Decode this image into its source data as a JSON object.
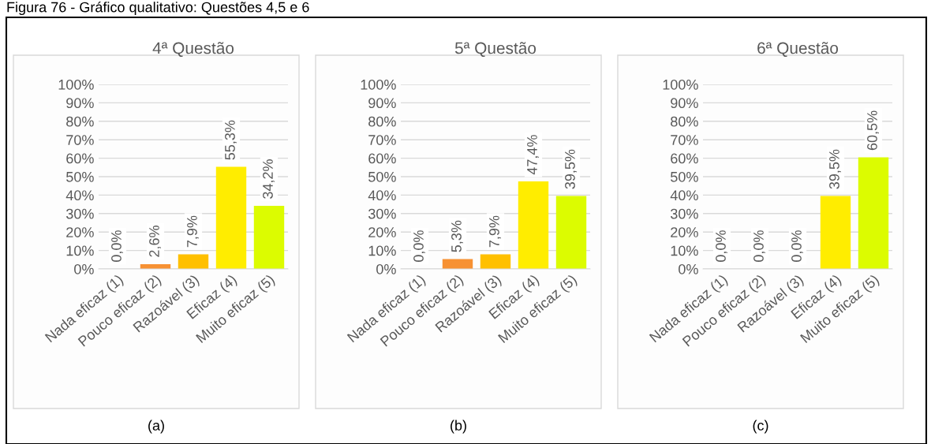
{
  "chart_data": [
    {
      "type": "bar",
      "title": "4ª Questão",
      "categories": [
        "Nada eficaz (1)",
        "Pouco eficaz (2)",
        "Razoável (3)",
        "Eficaz (4)",
        "Muito eficaz (5)"
      ],
      "values": [
        0.0,
        2.6,
        7.9,
        55.3,
        34.2
      ],
      "colors": [
        "#f79133",
        "#f79133",
        "#ffc000",
        "#ffed00",
        "#dcfc00"
      ],
      "value_labels": [
        "0,0%",
        "2,6%",
        "7,9%",
        "55,3%",
        "34,2%"
      ],
      "ylim": [
        0,
        100
      ],
      "yticks": [
        {
          "value": 0,
          "label": "0%"
        },
        {
          "value": 10,
          "label": "10%"
        },
        {
          "value": 20,
          "label": "20%"
        },
        {
          "value": 30,
          "label": "30%"
        },
        {
          "value": 40,
          "label": "40%"
        },
        {
          "value": 50,
          "label": "50%"
        },
        {
          "value": 60,
          "label": "60%"
        },
        {
          "value": 70,
          "label": "70%"
        },
        {
          "value": 80,
          "label": "80%"
        },
        {
          "value": 90,
          "label": "90%"
        },
        {
          "value": 100,
          "label": "100%"
        }
      ],
      "grid": "y",
      "legend": false,
      "annotations": [
        "Figura 76 - Gráfico qualitativo: Questões 4,5 e 6",
        "(a)"
      ]
    },
    {
      "type": "bar",
      "title": "5ª Questão",
      "categories": [
        "Nada eficaz (1)",
        "Pouco eficaz (2)",
        "Razoável (3)",
        "Eficaz (4)",
        "Muito eficaz (5)"
      ],
      "values": [
        0.0,
        5.3,
        7.9,
        47.4,
        39.5
      ],
      "colors": [
        "#f79133",
        "#f79133",
        "#ffc000",
        "#ffed00",
        "#dcfc00"
      ],
      "value_labels": [
        "0,0%",
        "5,3%",
        "7,9%",
        "47,4%",
        "39,5%"
      ],
      "ylim": [
        0,
        100
      ],
      "yticks": [
        {
          "value": 0,
          "label": "0%"
        },
        {
          "value": 10,
          "label": "10%"
        },
        {
          "value": 20,
          "label": "20%"
        },
        {
          "value": 30,
          "label": "30%"
        },
        {
          "value": 40,
          "label": "40%"
        },
        {
          "value": 50,
          "label": "50%"
        },
        {
          "value": 60,
          "label": "60%"
        },
        {
          "value": 70,
          "label": "70%"
        },
        {
          "value": 80,
          "label": "80%"
        },
        {
          "value": 90,
          "label": "90%"
        },
        {
          "value": 100,
          "label": "100%"
        }
      ],
      "grid": "y",
      "legend": false,
      "annotations": [
        "(b)"
      ]
    },
    {
      "type": "bar",
      "title": "6ª Questão",
      "categories": [
        "Nada eficaz (1)",
        "Pouco eficaz (2)",
        "Razoável (3)",
        "Eficaz (4)",
        "Muito eficaz (5)"
      ],
      "values": [
        0.0,
        0.0,
        0.0,
        39.5,
        60.5
      ],
      "colors": [
        "#f79133",
        "#f79133",
        "#ffc000",
        "#ffed00",
        "#dcfc00"
      ],
      "value_labels": [
        "0,0%",
        "0,0%",
        "0,0%",
        "39,5%",
        "60,5%"
      ],
      "ylim": [
        0,
        100
      ],
      "yticks": [
        {
          "value": 0,
          "label": "0%"
        },
        {
          "value": 10,
          "label": "10%"
        },
        {
          "value": 20,
          "label": "20%"
        },
        {
          "value": 30,
          "label": "30%"
        },
        {
          "value": 40,
          "label": "40%"
        },
        {
          "value": 50,
          "label": "50%"
        },
        {
          "value": 60,
          "label": "60%"
        },
        {
          "value": 70,
          "label": "70%"
        },
        {
          "value": 80,
          "label": "80%"
        },
        {
          "value": 90,
          "label": "90%"
        },
        {
          "value": 100,
          "label": "100%"
        }
      ],
      "grid": "y",
      "legend": false,
      "annotations": [
        "(c)"
      ]
    }
  ]
}
